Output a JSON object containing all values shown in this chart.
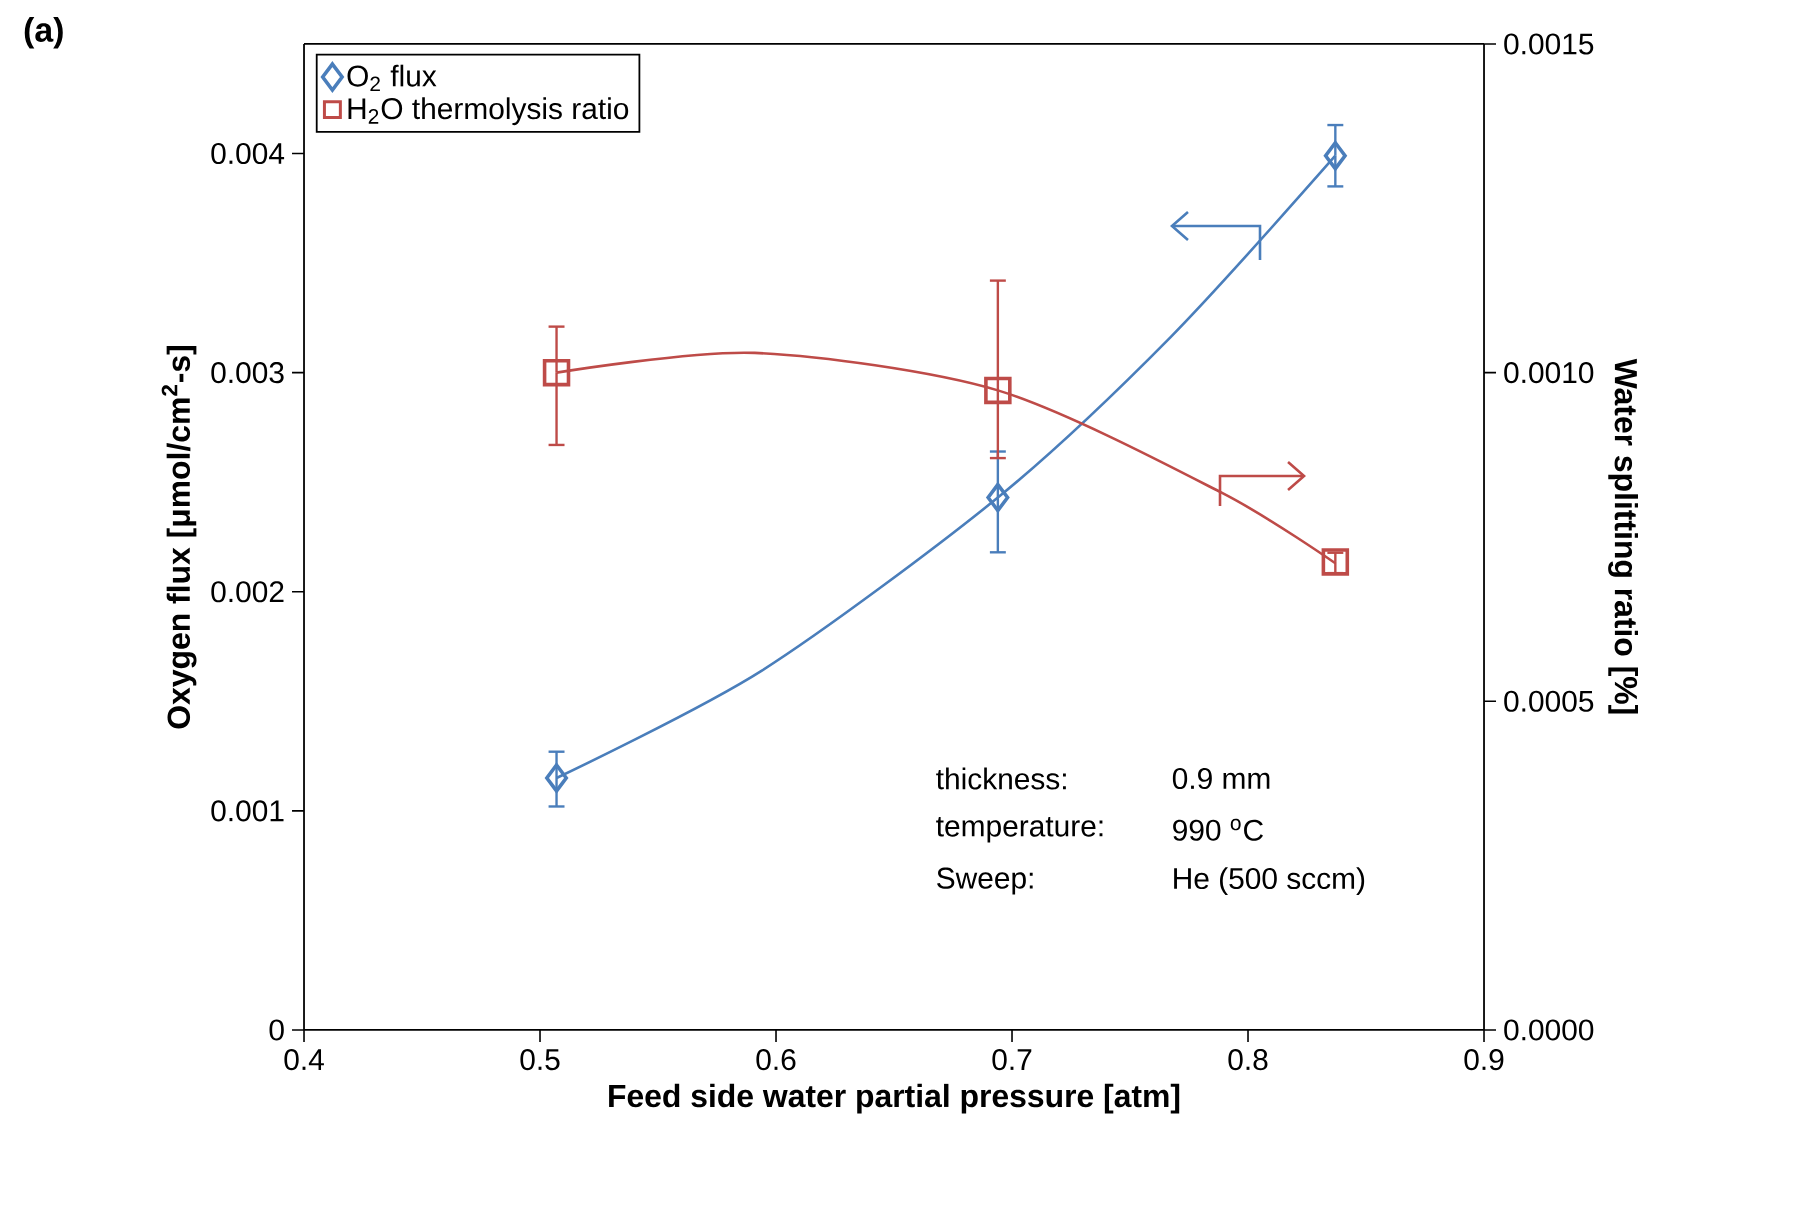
{
  "chart_data": {
    "type": "scatter",
    "title": "(a)",
    "xlabel": "Feed side water partial pressure [atm]",
    "ylabel": "Oxygen flux [μmol/cm$^{2}$-s]",
    "y2label": "Water splitting ratio [%]",
    "xlim": [
      0.4,
      0.9
    ],
    "xticks": [
      0.4,
      0.5,
      0.6,
      0.7,
      0.8,
      0.9
    ],
    "ylim": [
      0,
      0.0045
    ],
    "yticks": [
      0,
      0.001,
      0.002,
      0.003,
      0.004
    ],
    "y2lim": [
      0,
      0.0015
    ],
    "y2ticks": [
      {
        "value": 0,
        "label": "0.0000"
      },
      {
        "value": 0.0005,
        "label": "0.0005"
      },
      {
        "value": 0.001,
        "label": "0.0010"
      },
      {
        "value": 0.0015,
        "label": "0.0015"
      }
    ],
    "legend": "top left",
    "grid": false,
    "series": [
      {
        "name": "O$_{2}$ flux",
        "marker": "diamond",
        "color": "#4a7ebb",
        "x": [
          0.507,
          0.694,
          0.837
        ],
        "values": [
          0.00115,
          0.00243,
          0.00399
        ],
        "errors": [
          [
            0.00102,
            0.00127
          ],
          [
            0.00218,
            0.00264
          ],
          [
            0.00385,
            0.00413
          ]
        ]
      },
      {
        "type": "line",
        "marker": "none",
        "color": "#4a7ebb",
        "x": [
          0.507,
          0.594,
          0.694,
          0.767,
          0.837
        ],
        "values": [
          0.00115,
          0.00164,
          0.00243,
          0.00316,
          0.00399
        ]
      },
      {
        "name": "H$_{2}$O thermolysis ratio",
        "marker": "square",
        "axis": "y2",
        "color": "#be4b48",
        "x": [
          0.507,
          0.694,
          0.837
        ],
        "values": [
          0.001,
          0.000973,
          0.000712
        ],
        "errors": [
          [
            0.00089,
            0.00107
          ],
          [
            0.00087,
            0.00114
          ],
          [
            0.000695,
            0.000726
          ]
        ]
      },
      {
        "type": "line",
        "marker": "none",
        "axis": "y2",
        "color": "#be4b48",
        "x": [
          0.507,
          0.591,
          0.694,
          0.789,
          0.837
        ],
        "values": [
          0.001,
          0.00103,
          0.000973,
          0.000817,
          0.00071
        ]
      }
    ],
    "annotations": [
      "thickness:",
      "0.9 mm",
      "temperature:",
      "990 $^{o}$C",
      "Sweep:",
      "He (500 sccm)"
    ]
  }
}
